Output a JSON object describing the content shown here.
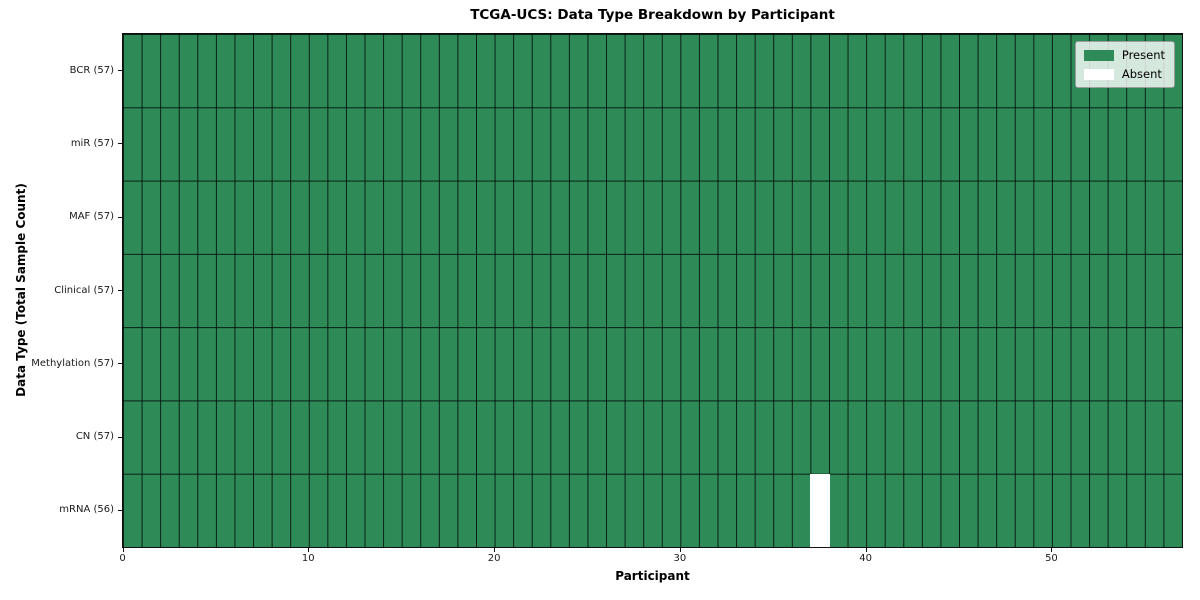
{
  "chart_data": {
    "type": "heatmap",
    "title": "TCGA-UCS: Data Type Breakdown by Participant",
    "xlabel": "Participant",
    "ylabel": "Data Type (Total Sample Count)",
    "n_participants": 57,
    "x_axis_range": [
      0,
      57
    ],
    "x_ticks": [
      0,
      10,
      20,
      30,
      40,
      50
    ],
    "rows": [
      {
        "label": "BCR (57)",
        "data_type": "BCR",
        "sample_count": 57,
        "absent_participants": []
      },
      {
        "label": "miR (57)",
        "data_type": "miR",
        "sample_count": 57,
        "absent_participants": []
      },
      {
        "label": "MAF (57)",
        "data_type": "MAF",
        "sample_count": 57,
        "absent_participants": []
      },
      {
        "label": "Clinical (57)",
        "data_type": "Clinical",
        "sample_count": 57,
        "absent_participants": []
      },
      {
        "label": "Methylation (57)",
        "data_type": "Methylation",
        "sample_count": 57,
        "absent_participants": []
      },
      {
        "label": "CN (57)",
        "data_type": "CN",
        "sample_count": 57,
        "absent_participants": []
      },
      {
        "label": "mRNA (56)",
        "data_type": "mRNA",
        "sample_count": 56,
        "absent_participants": [
          37
        ]
      }
    ],
    "legend": {
      "position": "upper right",
      "entries": [
        {
          "label": "Present",
          "color": "#2e8b57"
        },
        {
          "label": "Absent",
          "color": "#ffffff"
        }
      ]
    },
    "colors": {
      "present": "#2e8b57",
      "absent": "#ffffff",
      "grid_line": "rgba(0,0,0,0.78)",
      "axis_border": "#111111"
    },
    "grid": true
  }
}
